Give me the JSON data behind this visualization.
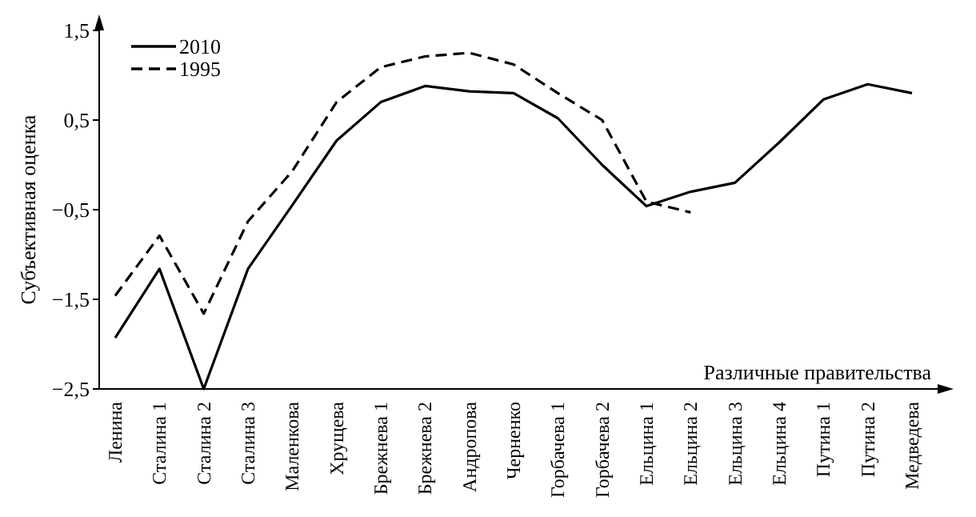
{
  "chart_data": {
    "type": "line",
    "xlabel": "Различные правительства",
    "ylabel": "Субъективная оценка",
    "categories": [
      "Ленина",
      "Сталина 1",
      "Сталина 2",
      "Сталина 3",
      "Маленкова",
      "Хрущева",
      "Брежнева 1",
      "Брежнева 2",
      "Андропова",
      "Черненко",
      "Горбачева 1",
      "Горбачева 2",
      "Ельцина 1",
      "Ельцина 2",
      "Ельцина 3",
      "Ельцина 4",
      "Путина 1",
      "Путина 2",
      "Медведева"
    ],
    "series": [
      {
        "name": "2010",
        "color": "#000000",
        "line_style": "solid",
        "values": [
          -1.93,
          -1.16,
          -2.5,
          -1.16,
          -0.45,
          0.27,
          0.7,
          0.88,
          0.82,
          0.8,
          0.52,
          0,
          -0.46,
          -0.3,
          -0.2,
          0.25,
          0.73,
          0.9,
          0.8
        ]
      },
      {
        "name": "1995",
        "color": "#000000",
        "line_style": "dashed",
        "values": [
          -1.46,
          -0.79,
          -1.66,
          -0.63,
          -0.07,
          0.7,
          1.09,
          1.21,
          1.25,
          1.12,
          0.8,
          0.5,
          -0.41,
          -0.53,
          null,
          null,
          null,
          null,
          null
        ]
      }
    ],
    "ylim": [
      -2.5,
      1.5
    ],
    "yticks": [
      {
        "value": -2.5,
        "label": "−2,5"
      },
      {
        "value": -1.5,
        "label": "−1,5"
      },
      {
        "value": -0.5,
        "label": "−0,5"
      },
      {
        "value": 0.5,
        "label": "0,5"
      },
      {
        "value": 1.5,
        "label": "1,5"
      }
    ],
    "grid": false,
    "legend": "top left",
    "marker": "none"
  }
}
